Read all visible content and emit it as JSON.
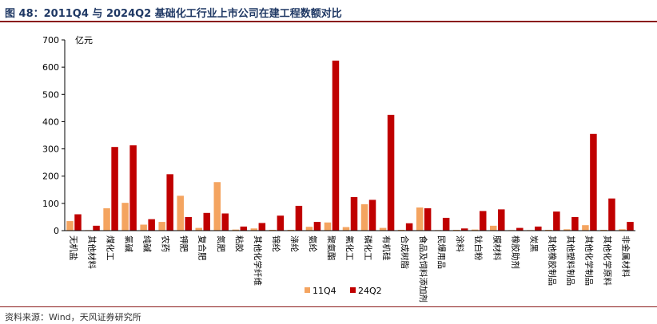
{
  "figure": {
    "title": "图 48：2011Q4 与 2024Q2 基础化工行业上市公司在建工程数额对比",
    "source": "资料来源：Wind，天风证券研究所"
  },
  "colors": {
    "s1": "#f4a460",
    "s2": "#c00000",
    "rule": "#8a1a1a",
    "title": "#1f3864"
  },
  "chart_data": {
    "type": "bar",
    "ylabel": "亿元",
    "ylim": [
      0,
      700
    ],
    "yticks": [
      0,
      100,
      200,
      300,
      400,
      500,
      600,
      700
    ],
    "legend_position": "bottom",
    "grid": false,
    "categories": [
      "无机盐",
      "其他材料",
      "煤化工",
      "氯碱",
      "纯碱",
      "农药",
      "钾肥",
      "复合肥",
      "氮肥",
      "粘胶",
      "其他化学纤维",
      "锦纶",
      "涤纶",
      "氨纶",
      "聚氨酯",
      "氟化工",
      "磷化工",
      "有机硅",
      "合成树脂",
      "食品及饲料添加剂",
      "民爆用品",
      "涂料",
      "钛白粉",
      "膜材料",
      "橡胶助剂",
      "炭黑",
      "其他橡胶制品",
      "其他塑料制品",
      "其他化学制品",
      "其他化学原料",
      "非金属材料"
    ],
    "series": [
      {
        "name": "11Q4",
        "values": [
          35,
          2,
          82,
          102,
          22,
          32,
          128,
          10,
          178,
          4,
          8,
          3,
          3,
          14,
          30,
          13,
          97,
          10,
          3,
          85,
          2,
          3,
          4,
          18,
          2,
          2,
          3,
          5,
          20,
          3,
          5
        ]
      },
      {
        "name": "24Q2",
        "values": [
          60,
          18,
          307,
          313,
          42,
          207,
          50,
          65,
          63,
          15,
          28,
          55,
          91,
          32,
          624,
          123,
          113,
          425,
          27,
          82,
          47,
          8,
          72,
          78,
          10,
          15,
          70,
          50,
          355,
          118,
          32
        ]
      }
    ]
  }
}
